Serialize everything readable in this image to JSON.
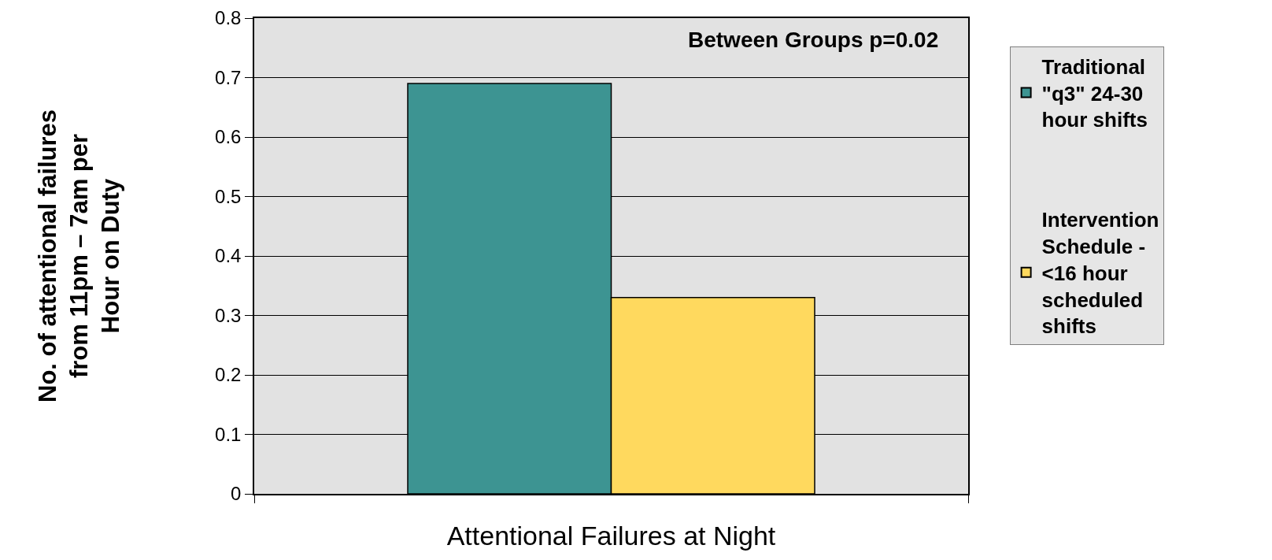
{
  "chart_data": {
    "type": "bar",
    "categories": [
      null
    ],
    "series": [
      {
        "name": "Traditional\n\"q3\" 24-30\nhour shifts",
        "color": "#3d9492",
        "values": [
          0.69
        ]
      },
      {
        "name": "Intervention\nSchedule -\n<16 hour\nscheduled\nshifts",
        "color": "#ffd95e",
        "values": [
          0.33
        ]
      }
    ],
    "xlabel": "Attentional Failures at Night",
    "ylabel": "No. of attentional failures\nfrom 11pm – 7am per\nHour on Duty",
    "annotations": [
      "Between Groups p=0.02"
    ],
    "ylim": [
      0,
      0.8
    ],
    "yticks": [
      0,
      0.1,
      0.2,
      0.3,
      0.4,
      0.5,
      0.6,
      0.7,
      0.8
    ],
    "grid": "y",
    "legend": "right",
    "tick_labels": "y"
  }
}
